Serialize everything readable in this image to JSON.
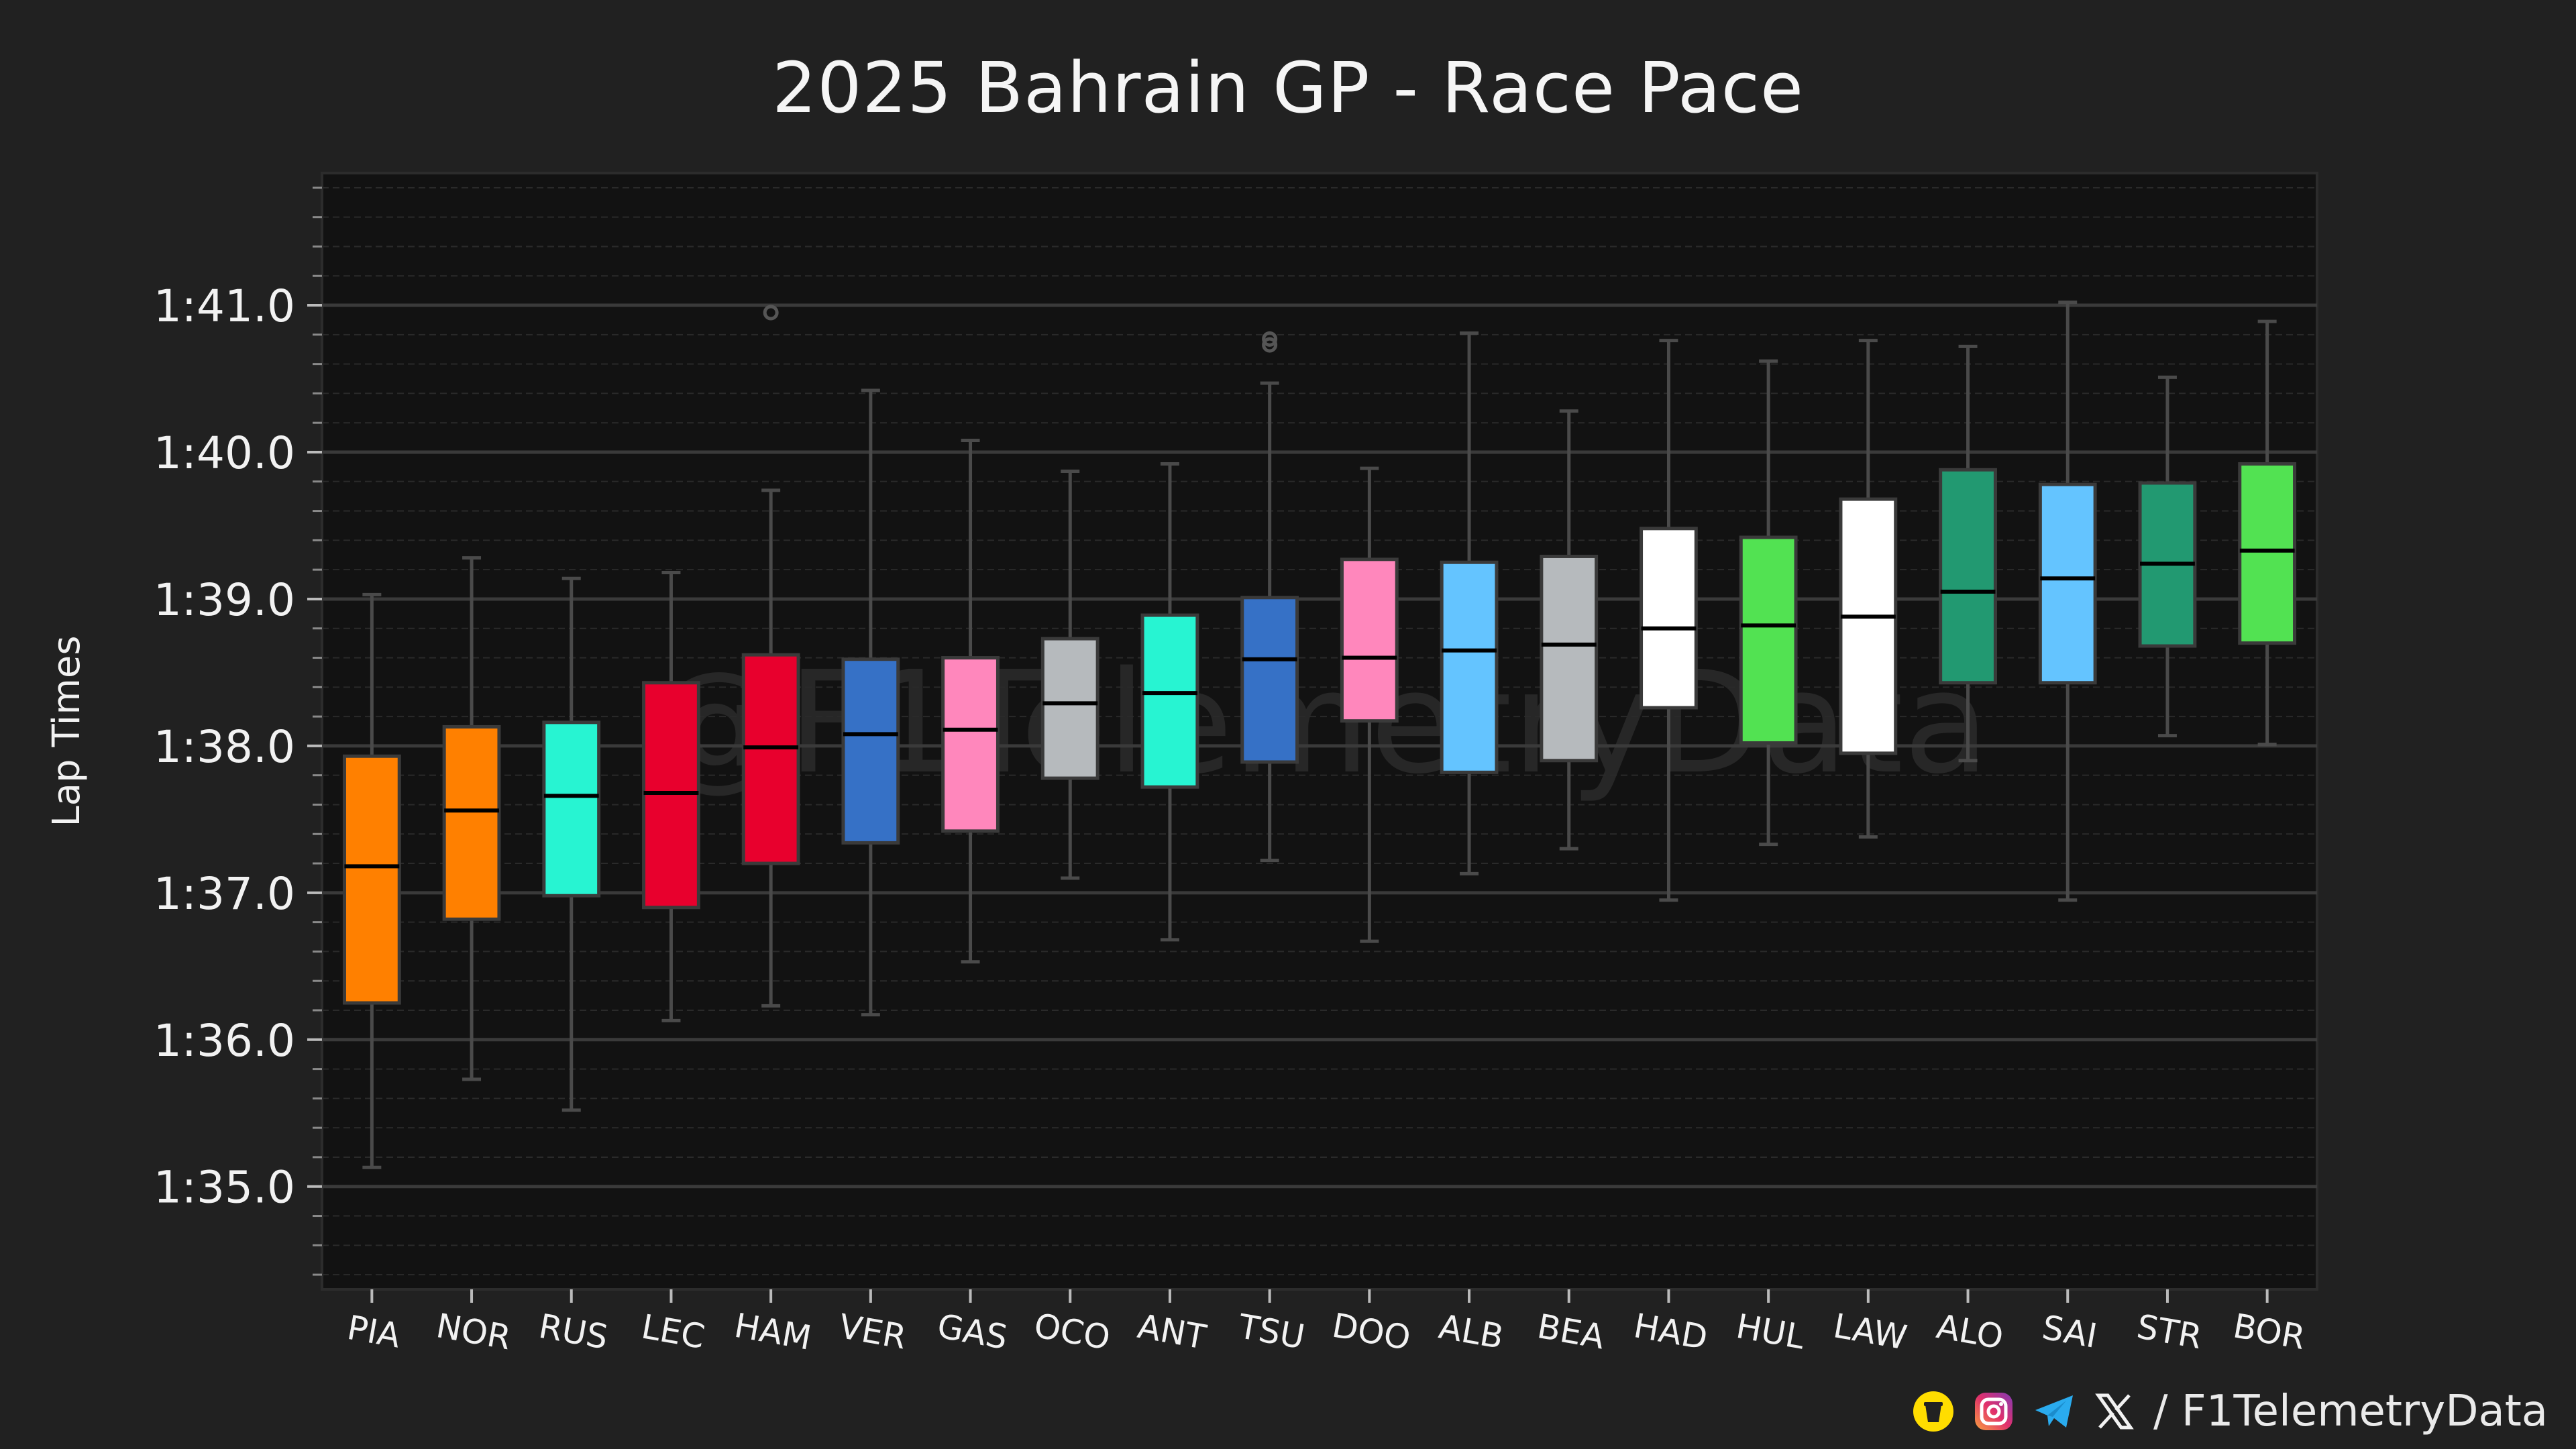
{
  "chart_data": {
    "type": "box",
    "title": "2025 Bahrain GP - Race Pace",
    "xlabel": "",
    "ylabel": "Lap Times",
    "ylim": [
      94.3,
      101.9
    ],
    "yticks": [
      95,
      96,
      97,
      98,
      99,
      100,
      101
    ],
    "ytick_labels": [
      "1:35.0",
      "1:36.0",
      "1:37.0",
      "1:38.0",
      "1:39.0",
      "1:40.0",
      "1:41.0"
    ],
    "grid": true,
    "watermark": "@F1TelemetryData",
    "categories": [
      "PIA",
      "NOR",
      "RUS",
      "LEC",
      "HAM",
      "VER",
      "GAS",
      "OCO",
      "ANT",
      "TSU",
      "DOO",
      "ALB",
      "BEA",
      "HAD",
      "HUL",
      "LAW",
      "ALO",
      "SAI",
      "STR",
      "BOR"
    ],
    "boxes": [
      {
        "driver": "PIA",
        "color": "#FF8000",
        "whisker_low": 95.13,
        "q1": 96.25,
        "median": 97.18,
        "q3": 97.93,
        "whisker_high": 99.03,
        "outliers": []
      },
      {
        "driver": "NOR",
        "color": "#FF8000",
        "whisker_low": 95.73,
        "q1": 96.82,
        "median": 97.56,
        "q3": 98.13,
        "whisker_high": 99.28,
        "outliers": []
      },
      {
        "driver": "RUS",
        "color": "#27F4D2",
        "whisker_low": 95.52,
        "q1": 96.98,
        "median": 97.66,
        "q3": 98.16,
        "whisker_high": 99.14,
        "outliers": []
      },
      {
        "driver": "LEC",
        "color": "#E8002D",
        "whisker_low": 96.13,
        "q1": 96.9,
        "median": 97.68,
        "q3": 98.43,
        "whisker_high": 99.18,
        "outliers": []
      },
      {
        "driver": "HAM",
        "color": "#E8002D",
        "whisker_low": 96.23,
        "q1": 97.2,
        "median": 97.99,
        "q3": 98.62,
        "whisker_high": 99.74,
        "outliers": [
          100.95
        ]
      },
      {
        "driver": "VER",
        "color": "#3671C6",
        "whisker_low": 96.17,
        "q1": 97.34,
        "median": 98.08,
        "q3": 98.59,
        "whisker_high": 100.42,
        "outliers": []
      },
      {
        "driver": "GAS",
        "color": "#FF87BC",
        "whisker_low": 96.53,
        "q1": 97.42,
        "median": 98.11,
        "q3": 98.6,
        "whisker_high": 100.08,
        "outliers": []
      },
      {
        "driver": "OCO",
        "color": "#B6BABD",
        "whisker_low": 97.1,
        "q1": 97.78,
        "median": 98.29,
        "q3": 98.73,
        "whisker_high": 99.87,
        "outliers": []
      },
      {
        "driver": "ANT",
        "color": "#27F4D2",
        "whisker_low": 96.68,
        "q1": 97.72,
        "median": 98.36,
        "q3": 98.89,
        "whisker_high": 99.92,
        "outliers": []
      },
      {
        "driver": "TSU",
        "color": "#3671C6",
        "whisker_low": 97.22,
        "q1": 97.89,
        "median": 98.59,
        "q3": 99.01,
        "whisker_high": 100.47,
        "outliers": [
          100.73,
          100.77
        ]
      },
      {
        "driver": "DOO",
        "color": "#FF87BC",
        "whisker_low": 96.67,
        "q1": 98.17,
        "median": 98.6,
        "q3": 99.27,
        "whisker_high": 99.89,
        "outliers": []
      },
      {
        "driver": "ALB",
        "color": "#64C4FF",
        "whisker_low": 97.13,
        "q1": 97.82,
        "median": 98.65,
        "q3": 99.25,
        "whisker_high": 100.81,
        "outliers": []
      },
      {
        "driver": "BEA",
        "color": "#B6BABD",
        "whisker_low": 97.3,
        "q1": 97.9,
        "median": 98.69,
        "q3": 99.29,
        "whisker_high": 100.28,
        "outliers": []
      },
      {
        "driver": "HAD",
        "color": "#FFFFFF",
        "whisker_low": 96.95,
        "q1": 98.26,
        "median": 98.8,
        "q3": 99.48,
        "whisker_high": 100.76,
        "outliers": []
      },
      {
        "driver": "HUL",
        "color": "#52E252",
        "whisker_low": 97.33,
        "q1": 98.02,
        "median": 98.82,
        "q3": 99.42,
        "whisker_high": 100.62,
        "outliers": []
      },
      {
        "driver": "LAW",
        "color": "#FFFFFF",
        "whisker_low": 97.38,
        "q1": 97.95,
        "median": 98.88,
        "q3": 99.68,
        "whisker_high": 100.76,
        "outliers": []
      },
      {
        "driver": "ALO",
        "color": "#229971",
        "whisker_low": 97.9,
        "q1": 98.43,
        "median": 99.05,
        "q3": 99.88,
        "whisker_high": 100.72,
        "outliers": []
      },
      {
        "driver": "SAI",
        "color": "#64C4FF",
        "whisker_low": 96.95,
        "q1": 98.43,
        "median": 99.14,
        "q3": 99.78,
        "whisker_high": 101.02,
        "outliers": []
      },
      {
        "driver": "STR",
        "color": "#229971",
        "whisker_low": 98.07,
        "q1": 98.68,
        "median": 99.24,
        "q3": 99.79,
        "whisker_high": 100.51,
        "outliers": []
      },
      {
        "driver": "BOR",
        "color": "#52E252",
        "whisker_low": 98.01,
        "q1": 98.7,
        "median": 99.33,
        "q3": 99.92,
        "whisker_high": 100.89,
        "outliers": []
      }
    ]
  },
  "footer": {
    "handle": "/ F1TelemetryData",
    "icons": [
      "buymeacoffee-icon",
      "instagram-icon",
      "telegram-icon",
      "x-icon"
    ]
  },
  "colors": {
    "background": "#212121",
    "plot_background": "#121212",
    "grid_major": "#3a3a3a",
    "grid_minor": "#2a2a2a",
    "whisker": "#4a4a4a",
    "median": "#000000",
    "text": "#f2f2f2"
  }
}
